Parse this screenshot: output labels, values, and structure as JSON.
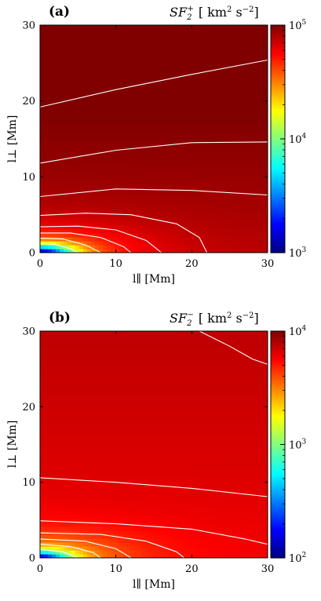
{
  "chart_data": [
    {
      "type": "heatmap",
      "panel_label": "(a)",
      "title": "SF2+ [ km2 s−2]",
      "title_parts": {
        "sf": "SF",
        "sub": "2",
        "sup": "+",
        "unit_open": "[ km",
        "unit_exp1": "2",
        "unit_mid": " s",
        "unit_exp2": "−2",
        "unit_close": "]"
      },
      "xlabel": "l∥ [Mm]",
      "ylabel": "l⊥ [Mm]",
      "xlim": [
        0,
        30
      ],
      "ylim": [
        0,
        30
      ],
      "xticks": [
        "0",
        "10",
        "20",
        "30"
      ],
      "yticks": [
        "0",
        "10",
        "20",
        "30"
      ],
      "colorbar": {
        "scale": "log",
        "min": 1000,
        "max": 100000,
        "ticks": [
          {
            "base": "10",
            "exp": "3",
            "value": 1000
          },
          {
            "base": "10",
            "exp": "4",
            "value": 10000
          },
          {
            "base": "10",
            "exp": "5",
            "value": 100000
          }
        ]
      },
      "colormap": "jet",
      "contour_color": "#ffffff",
      "contours_l_perp_at_l_par": [
        {
          "x": [
            0,
            10,
            20,
            30
          ],
          "y": [
            19.2,
            21.5,
            23.5,
            25.4
          ]
        },
        {
          "x": [
            0,
            10,
            20,
            30
          ],
          "y": [
            11.8,
            13.5,
            14.5,
            14.6
          ]
        },
        {
          "x": [
            0,
            10,
            20,
            30
          ],
          "y": [
            7.4,
            8.4,
            8.2,
            7.6
          ]
        },
        {
          "x": [
            0,
            6,
            12,
            18,
            21,
            22
          ],
          "y": [
            4.9,
            5.2,
            5.0,
            3.8,
            2.0,
            0
          ]
        },
        {
          "x": [
            0,
            5,
            10,
            14,
            16
          ],
          "y": [
            3.4,
            3.5,
            3.0,
            1.6,
            0
          ]
        },
        {
          "x": [
            0,
            4,
            8,
            11,
            12
          ],
          "y": [
            2.6,
            2.6,
            2.0,
            0.8,
            0
          ]
        },
        {
          "x": [
            0,
            3,
            6,
            8
          ],
          "y": [
            1.9,
            1.8,
            1.0,
            0
          ]
        },
        {
          "x": [
            0,
            2,
            4,
            5
          ],
          "y": [
            1.2,
            1.1,
            0.5,
            0
          ]
        }
      ]
    },
    {
      "type": "heatmap",
      "panel_label": "(b)",
      "title": "SF2− [ km2 s−2]",
      "title_parts": {
        "sf": "SF",
        "sub": "2",
        "sup": "−",
        "unit_open": "[ km",
        "unit_exp1": "2",
        "unit_mid": " s",
        "unit_exp2": "−2",
        "unit_close": "]"
      },
      "xlabel": "l∥ [Mm]",
      "ylabel": "l⊥ [Mm]",
      "xlim": [
        0,
        30
      ],
      "ylim": [
        0,
        30
      ],
      "xticks": [
        "0",
        "10",
        "20",
        "30"
      ],
      "yticks": [
        "0",
        "10",
        "20",
        "30"
      ],
      "colorbar": {
        "scale": "log",
        "min": 100,
        "max": 10000,
        "ticks": [
          {
            "base": "10",
            "exp": "2",
            "value": 100
          },
          {
            "base": "10",
            "exp": "3",
            "value": 1000
          },
          {
            "base": "10",
            "exp": "4",
            "value": 10000
          }
        ]
      },
      "colormap": "jet",
      "contour_color": "#ffffff",
      "contours_l_perp_at_l_par": [
        {
          "x": [
            21,
            25,
            28,
            30
          ],
          "y": [
            30,
            28.0,
            26.3,
            25.6
          ]
        },
        {
          "x": [
            0,
            10,
            20,
            30
          ],
          "y": [
            10.6,
            10.0,
            9.2,
            8.1
          ]
        },
        {
          "x": [
            0,
            10,
            20,
            27,
            30
          ],
          "y": [
            4.9,
            4.5,
            3.8,
            2.5,
            1.8
          ]
        },
        {
          "x": [
            0,
            8,
            14,
            18,
            19
          ],
          "y": [
            3.3,
            3.1,
            2.2,
            0.8,
            0
          ]
        },
        {
          "x": [
            0,
            6,
            10,
            12
          ],
          "y": [
            2.5,
            2.2,
            1.2,
            0
          ]
        },
        {
          "x": [
            0,
            4,
            7,
            8
          ],
          "y": [
            1.8,
            1.5,
            0.7,
            0
          ]
        },
        {
          "x": [
            0,
            3,
            5
          ],
          "y": [
            1.1,
            0.8,
            0
          ]
        }
      ]
    }
  ]
}
